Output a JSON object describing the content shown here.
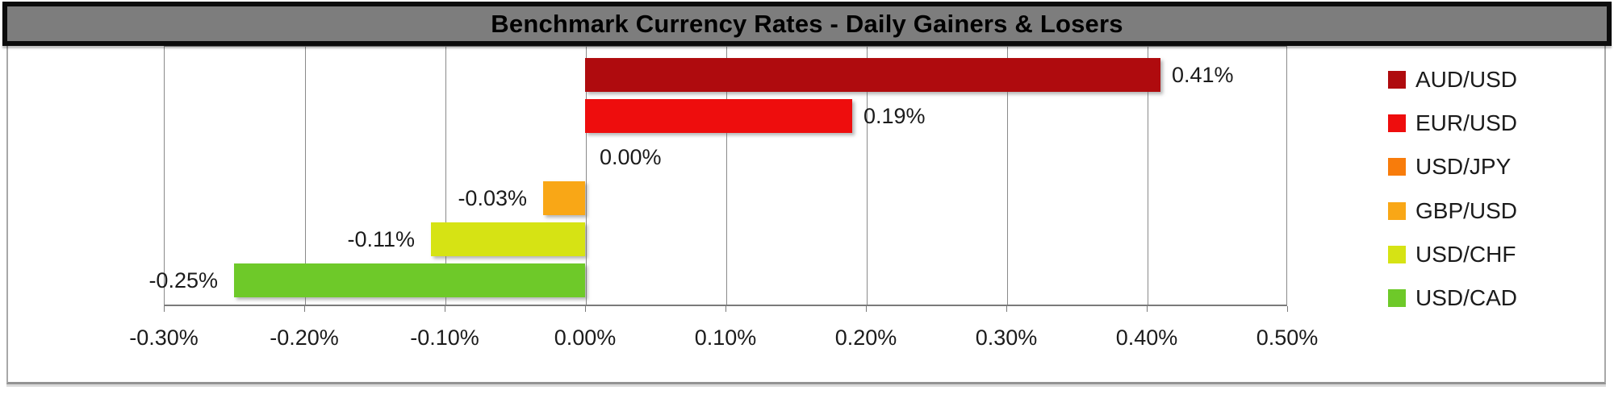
{
  "chart_data": {
    "type": "bar",
    "orientation": "horizontal",
    "title": "Benchmark Currency Rates - Daily Gainers & Losers",
    "categories": [
      "AUD/USD",
      "EUR/USD",
      "USD/JPY",
      "GBP/USD",
      "USD/CHF",
      "USD/CAD"
    ],
    "values": [
      0.41,
      0.19,
      0.0,
      -0.03,
      -0.11,
      -0.25
    ],
    "data_labels": [
      "0.41%",
      "0.19%",
      "0.00%",
      "-0.03%",
      "-0.11%",
      "-0.25%"
    ],
    "bar_colors": [
      "#AF0B0E",
      "#EE0D0D",
      "#F87C0B",
      "#F9A716",
      "#D6E314",
      "#6EC929"
    ],
    "xlabel": "",
    "ylabel": "",
    "x_ticks": [
      {
        "value": -0.3,
        "label": "-0.30%"
      },
      {
        "value": -0.2,
        "label": "-0.20%"
      },
      {
        "value": -0.1,
        "label": "-0.10%"
      },
      {
        "value": 0.0,
        "label": "0.00%"
      },
      {
        "value": 0.1,
        "label": "0.10%"
      },
      {
        "value": 0.2,
        "label": "0.20%"
      },
      {
        "value": 0.3,
        "label": "0.30%"
      },
      {
        "value": 0.4,
        "label": "0.40%"
      },
      {
        "value": 0.5,
        "label": "0.50%"
      }
    ],
    "xlim": [
      -0.3,
      0.5
    ],
    "grid": "vertical",
    "legend_position": "right",
    "legend": [
      "AUD/USD",
      "EUR/USD",
      "USD/JPY",
      "GBP/USD",
      "USD/CHF",
      "USD/CAD"
    ]
  },
  "colors": {
    "title_bar_bg": "#7D7D7D",
    "title_bar_border": "#0C0C0C",
    "title_text": "#000000",
    "gridline": "#8A8A8A",
    "axis_line": "#7A7A7A",
    "label_text": "#1B1B1B",
    "chart_bg": "#FFFFFF"
  }
}
